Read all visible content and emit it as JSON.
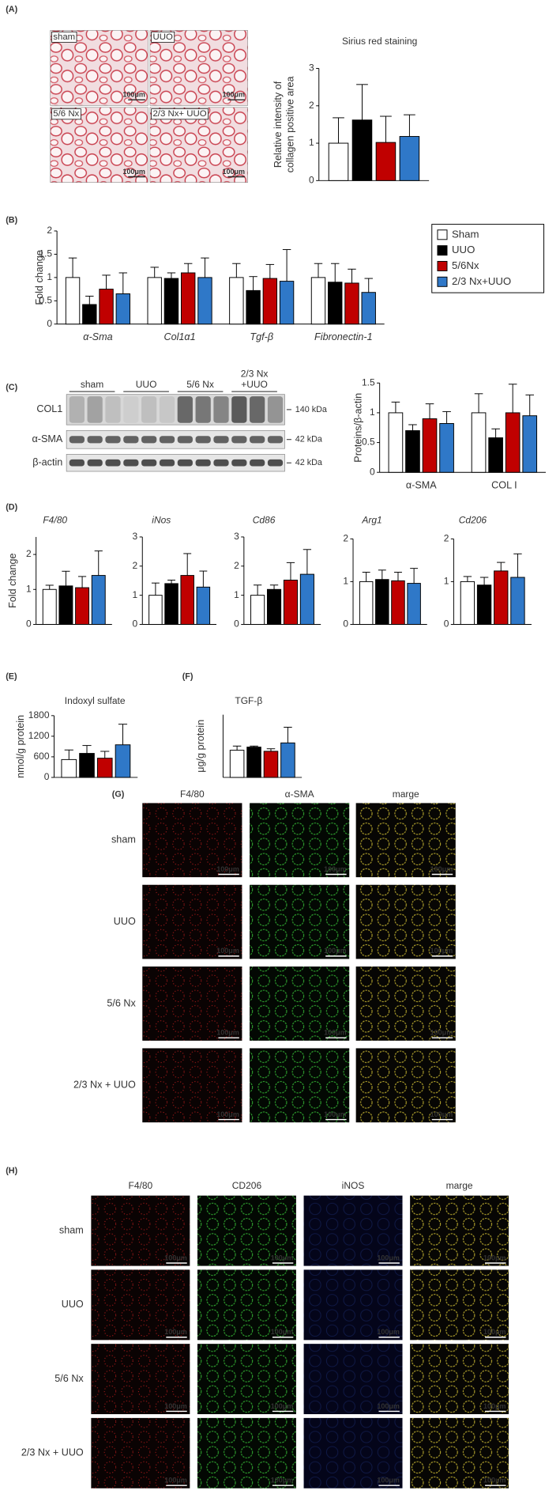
{
  "panel_labels": [
    "(A)",
    "(B)",
    "(C)",
    "(D)",
    "(E)",
    "(F)",
    "(G)",
    "(H)"
  ],
  "chart_data": [
    {
      "type": "bar",
      "title": "Sirius red staining",
      "ylabel": [
        "Relative intensity of",
        "collagen positive  area"
      ],
      "ylim": [
        0,
        3
      ],
      "yticks": [
        0,
        1,
        2,
        3
      ],
      "series": [
        {
          "color": "#ffffff",
          "values": [
            1.0
          ],
          "errors": [
            0.68
          ]
        },
        {
          "color": "#000000",
          "values": [
            1.62
          ],
          "errors": [
            0.95
          ]
        },
        {
          "color": "#c00000",
          "values": [
            1.02
          ],
          "errors": [
            0.7
          ]
        },
        {
          "color": "#2f78c8",
          "values": [
            1.18
          ],
          "errors": [
            0.58
          ]
        }
      ]
    },
    {
      "type": "bar",
      "ylabel": [
        "Fold change"
      ],
      "categories": [
        "α-Sma",
        "Col1α1",
        "Tgf-β",
        "Fibronectin-1"
      ],
      "category_style": "italic",
      "ylim": [
        0,
        2
      ],
      "yticks": [
        0,
        0.5,
        1,
        1.5,
        2
      ],
      "legend": true,
      "series": [
        {
          "name": "Sham",
          "color": "#ffffff",
          "values": [
            1.0,
            1.0,
            1.0,
            1.0
          ],
          "errors": [
            0.42,
            0.22,
            0.3,
            0.3
          ]
        },
        {
          "name": "UUO",
          "color": "#000000",
          "values": [
            0.42,
            0.98,
            0.72,
            0.9
          ],
          "errors": [
            0.18,
            0.12,
            0.3,
            0.4
          ]
        },
        {
          "name": "5/6Nx",
          "color": "#c00000",
          "values": [
            0.75,
            1.1,
            0.98,
            0.88
          ],
          "errors": [
            0.3,
            0.2,
            0.3,
            0.3
          ]
        },
        {
          "name": "2/3 Nx+UUO",
          "color": "#2f78c8",
          "values": [
            0.65,
            1.0,
            0.92,
            0.68
          ],
          "errors": [
            0.45,
            0.42,
            0.68,
            0.3
          ]
        }
      ]
    },
    {
      "type": "bar",
      "ylabel": [
        "Proteins/β-actin"
      ],
      "categories": [
        "α-SMA",
        "COL I"
      ],
      "ylim": [
        0,
        1.5
      ],
      "yticks": [
        0,
        0.5,
        1,
        1.5
      ],
      "series": [
        {
          "color": "#ffffff",
          "values": [
            1.0,
            1.0
          ],
          "errors": [
            0.18,
            0.32
          ]
        },
        {
          "color": "#000000",
          "values": [
            0.7,
            0.58
          ],
          "errors": [
            0.1,
            0.15
          ]
        },
        {
          "color": "#c00000",
          "values": [
            0.9,
            1.0
          ],
          "errors": [
            0.25,
            0.48
          ]
        },
        {
          "color": "#2f78c8",
          "values": [
            0.82,
            0.95
          ],
          "errors": [
            0.2,
            0.35
          ]
        }
      ]
    },
    {
      "type": "bar",
      "title": "F4/80",
      "title_style": "italic",
      "ylabel": [
        "Fold change"
      ],
      "ylim": [
        0,
        2.5
      ],
      "yticks": [
        0,
        1,
        2
      ],
      "series": [
        {
          "color": "#ffffff",
          "values": [
            1.0
          ],
          "errors": [
            0.12
          ]
        },
        {
          "color": "#000000",
          "values": [
            1.1
          ],
          "errors": [
            0.42
          ]
        },
        {
          "color": "#c00000",
          "values": [
            1.05
          ],
          "errors": [
            0.32
          ]
        },
        {
          "color": "#2f78c8",
          "values": [
            1.4
          ],
          "errors": [
            0.7
          ]
        }
      ]
    },
    {
      "type": "bar",
      "title": "iNos",
      "title_style": "italic",
      "ylim": [
        0,
        3
      ],
      "yticks": [
        0,
        1,
        2,
        3
      ],
      "series": [
        {
          "color": "#ffffff",
          "values": [
            1.0
          ],
          "errors": [
            0.42
          ]
        },
        {
          "color": "#000000",
          "values": [
            1.4
          ],
          "errors": [
            0.12
          ]
        },
        {
          "color": "#c00000",
          "values": [
            1.68
          ],
          "errors": [
            0.75
          ]
        },
        {
          "color": "#2f78c8",
          "values": [
            1.28
          ],
          "errors": [
            0.55
          ]
        }
      ]
    },
    {
      "type": "bar",
      "title": "Cd86",
      "title_style": "italic",
      "ylim": [
        0,
        3
      ],
      "yticks": [
        0,
        1,
        2,
        3
      ],
      "series": [
        {
          "color": "#ffffff",
          "values": [
            1.0
          ],
          "errors": [
            0.35
          ]
        },
        {
          "color": "#000000",
          "values": [
            1.2
          ],
          "errors": [
            0.15
          ]
        },
        {
          "color": "#c00000",
          "values": [
            1.52
          ],
          "errors": [
            0.6
          ]
        },
        {
          "color": "#2f78c8",
          "values": [
            1.72
          ],
          "errors": [
            0.85
          ]
        }
      ]
    },
    {
      "type": "bar",
      "title": "Arg1",
      "title_style": "italic",
      "ylim": [
        0,
        2
      ],
      "yticks": [
        0,
        1,
        2
      ],
      "series": [
        {
          "color": "#ffffff",
          "values": [
            1.0
          ],
          "errors": [
            0.22
          ]
        },
        {
          "color": "#000000",
          "values": [
            1.05
          ],
          "errors": [
            0.22
          ]
        },
        {
          "color": "#c00000",
          "values": [
            1.02
          ],
          "errors": [
            0.2
          ]
        },
        {
          "color": "#2f78c8",
          "values": [
            0.96
          ],
          "errors": [
            0.35
          ]
        }
      ]
    },
    {
      "type": "bar",
      "title": "Cd206",
      "title_style": "italic",
      "ylim": [
        0,
        2
      ],
      "yticks": [
        0,
        1,
        2
      ],
      "series": [
        {
          "color": "#ffffff",
          "values": [
            1.0
          ],
          "errors": [
            0.12
          ]
        },
        {
          "color": "#000000",
          "values": [
            0.92
          ],
          "errors": [
            0.18
          ]
        },
        {
          "color": "#c00000",
          "values": [
            1.25
          ],
          "errors": [
            0.2
          ]
        },
        {
          "color": "#2f78c8",
          "values": [
            1.1
          ],
          "errors": [
            0.55
          ]
        }
      ]
    },
    {
      "type": "bar",
      "title": "Indoxyl sulfate",
      "ylabel": [
        "nmol/g protein"
      ],
      "ylim": [
        0,
        1800
      ],
      "yticks": [
        0,
        600,
        1200,
        1800
      ],
      "series": [
        {
          "color": "#ffffff",
          "values": [
            520
          ],
          "errors": [
            280
          ]
        },
        {
          "color": "#000000",
          "values": [
            700
          ],
          "errors": [
            230
          ]
        },
        {
          "color": "#c00000",
          "values": [
            560
          ],
          "errors": [
            200
          ]
        },
        {
          "color": "#2f78c8",
          "values": [
            950
          ],
          "errors": [
            600
          ]
        }
      ]
    },
    {
      "type": "bar",
      "title": "TGF-β",
      "ylabel": [
        "μg/g protein"
      ],
      "ylim": [
        0,
        3
      ],
      "series": [
        {
          "color": "#ffffff",
          "values": [
            1.3
          ],
          "errors": [
            0.2
          ]
        },
        {
          "color": "#000000",
          "values": [
            1.45
          ],
          "errors": [
            0.05
          ]
        },
        {
          "color": "#c00000",
          "values": [
            1.25
          ],
          "errors": [
            0.12
          ]
        },
        {
          "color": "#2f78c8",
          "values": [
            1.65
          ],
          "errors": [
            0.75
          ]
        }
      ]
    }
  ],
  "sirius_images": {
    "labels": [
      "sham",
      "UUO",
      "5/6 Nx",
      "2/3 Nx+ UUO"
    ],
    "scale": "100μm"
  },
  "blot": {
    "groups": [
      [
        "sham"
      ],
      [
        "UUO"
      ],
      [
        "5/6 Nx"
      ],
      [
        "2/3 Nx",
        "+UUO"
      ]
    ],
    "rows": [
      "COL1",
      "α-SMA",
      "β-actin"
    ],
    "sizes": [
      "140 kDa",
      "42 kDa",
      "42 kDa"
    ]
  },
  "if_g": {
    "columns": [
      "F4/80",
      "α-SMA",
      "marge"
    ],
    "rows": [
      "sham",
      "UUO",
      "5/6 Nx",
      "2/3 Nx + UUO"
    ],
    "scale": "100μm"
  },
  "if_h": {
    "columns": [
      "F4/80",
      "CD206",
      "iNOS",
      "marge"
    ],
    "rows": [
      "sham",
      "UUO",
      "5/6 Nx",
      "2/3 Nx + UUO"
    ],
    "scale": "100μm"
  }
}
